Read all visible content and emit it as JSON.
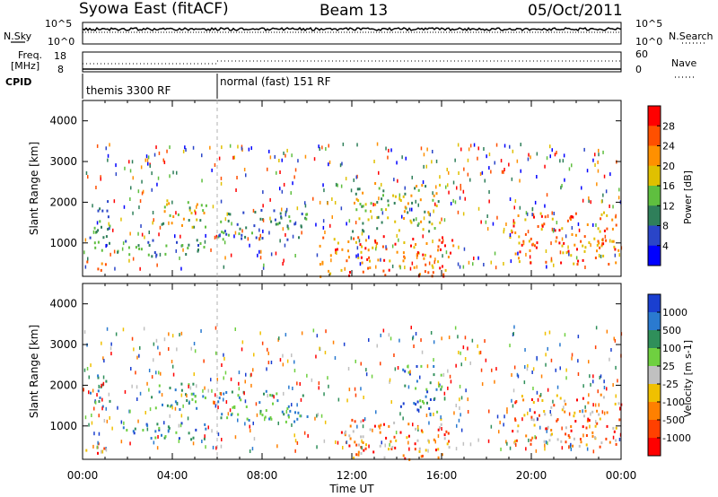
{
  "header": {
    "station": "Syowa East (fitACF)",
    "beam": "Beam 13",
    "date": "05/Oct/2011"
  },
  "top_panels": {
    "nsky_label": "N.Sky",
    "nsearch_label": "N.Search",
    "freq_label_1": "Freq.",
    "freq_label_2": "[MHz]",
    "nave_label": "Nave",
    "cpid_label": "CPID",
    "left_ticks_noise": [
      "10^5",
      "10^0"
    ],
    "right_ticks_noise": [
      "10^5",
      "10^0"
    ],
    "left_ticks_freq": [
      "18",
      "8"
    ],
    "right_ticks_nave": [
      "60",
      "0"
    ],
    "cpid_segments": [
      {
        "label": "themis 3300 RF",
        "start_hour": 0,
        "end_hour": 6
      },
      {
        "label": "normal (fast) 151 RF",
        "start_hour": 6,
        "end_hour": 24
      }
    ]
  },
  "chart_data": [
    {
      "type": "heatmap",
      "name": "Power",
      "title": "",
      "ylabel": "Slant Range [km]",
      "xlabel": "",
      "xlim": [
        0,
        24
      ],
      "ylim": [
        180,
        4500
      ],
      "yticks": [
        1000,
        2000,
        3000,
        4000
      ],
      "colorbar": {
        "label": "Power [dB]",
        "ticks": [
          "4",
          "8",
          "12",
          "16",
          "20",
          "24",
          "28"
        ],
        "colors": [
          "#0000ff",
          "#2a45c8",
          "#2f7f5a",
          "#5fbf3f",
          "#e0c000",
          "#ff9000",
          "#ff5000",
          "#ff0000"
        ]
      },
      "scatter_echo_regions": [
        {
          "t": [
            0.0,
            1.0
          ],
          "r": [
            300,
            600
          ],
          "level": "high"
        },
        {
          "t": [
            0.3,
            1.2
          ],
          "r": [
            700,
            2300
          ],
          "level": "low"
        },
        {
          "t": [
            1.5,
            6.0
          ],
          "r": [
            700,
            1100
          ],
          "level": "low"
        },
        {
          "t": [
            3.0,
            5.5
          ],
          "r": [
            1400,
            2100
          ],
          "level": "mid"
        },
        {
          "t": [
            6.0,
            10.0
          ],
          "r": [
            1100,
            1900
          ],
          "level": "low"
        },
        {
          "t": [
            10.5,
            16.5
          ],
          "r": [
            200,
            1200
          ],
          "level": "high"
        },
        {
          "t": [
            12.0,
            16.0
          ],
          "r": [
            1300,
            2500
          ],
          "level": "mid"
        },
        {
          "t": [
            19.0,
            24.0
          ],
          "r": [
            500,
            1800
          ],
          "level": "high"
        }
      ]
    },
    {
      "type": "heatmap",
      "name": "Velocity",
      "title": "",
      "ylabel": "Slant Range [km]",
      "xlabel": "Time UT",
      "xlim": [
        0,
        24
      ],
      "ylim": [
        180,
        4500
      ],
      "yticks": [
        1000,
        2000,
        3000,
        4000
      ],
      "xticks": [
        "00:00",
        "04:00",
        "08:00",
        "12:00",
        "16:00",
        "20:00",
        "00:00"
      ],
      "colorbar": {
        "label": "Velocity [m s-1]",
        "ticks": [
          "1000",
          "500",
          "100",
          "25",
          "-25",
          "-100",
          "-500",
          "-1000"
        ],
        "colors": [
          "#1a3fd0",
          "#2a7ad0",
          "#2f8f5a",
          "#6fd040",
          "#c0c0c0",
          "#f0c000",
          "#ff8000",
          "#ff4000",
          "#ff0000"
        ]
      },
      "scatter_echo_regions": [
        {
          "t": [
            0.0,
            1.0
          ],
          "r": [
            300,
            600
          ],
          "level": "toward"
        },
        {
          "t": [
            0.3,
            1.2
          ],
          "r": [
            1500,
            2300
          ],
          "level": "low"
        },
        {
          "t": [
            1.5,
            6.0
          ],
          "r": [
            700,
            1100
          ],
          "level": "away"
        },
        {
          "t": [
            3.0,
            5.5
          ],
          "r": [
            1400,
            2100
          ],
          "level": "low"
        },
        {
          "t": [
            6.0,
            10.0
          ],
          "r": [
            1100,
            1900
          ],
          "level": "low"
        },
        {
          "t": [
            11.5,
            16.5
          ],
          "r": [
            200,
            1200
          ],
          "level": "toward"
        },
        {
          "t": [
            14.0,
            16.0
          ],
          "r": [
            1300,
            2500
          ],
          "level": "away"
        },
        {
          "t": [
            19.0,
            24.0
          ],
          "r": [
            500,
            1800
          ],
          "level": "toward"
        }
      ]
    }
  ]
}
